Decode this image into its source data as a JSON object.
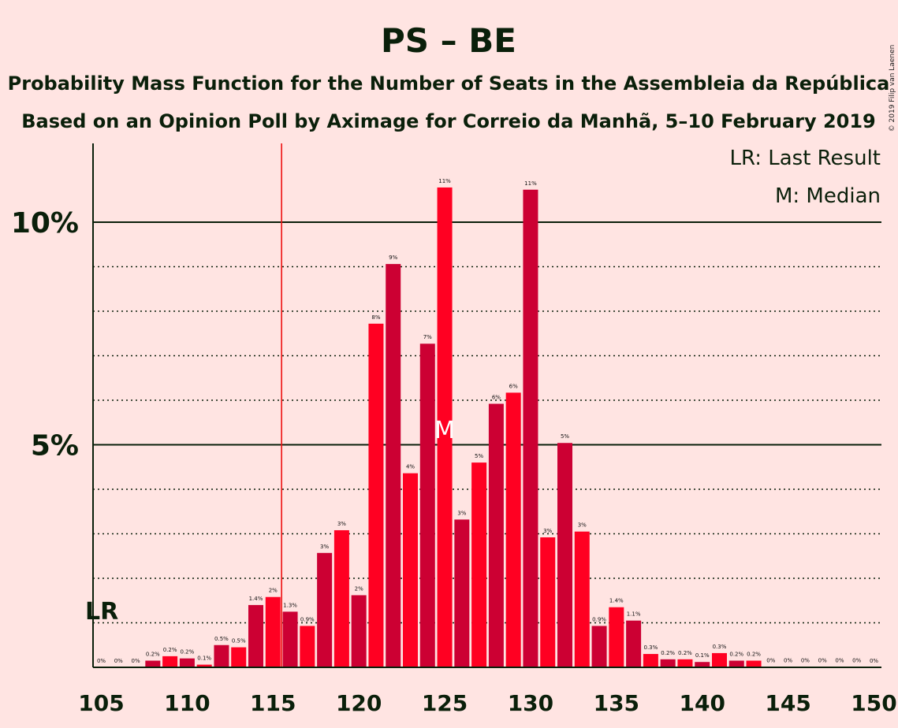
{
  "header": {
    "title": "PS – BE",
    "subtitle1": "Probability Mass Function for the Number of Seats in the Assembleia da República",
    "subtitle2": "Based on an Opinion Poll by Aximage for Correio da Manhã, 5–10 February 2019",
    "copyright": "© 2019 Filip van Laenen"
  },
  "legend": {
    "last_result": "LR: Last Result",
    "median": "M: Median"
  },
  "colors": {
    "background": "#FFE4E2",
    "bar_light": "#FF0022",
    "bar_dark": "#CC0033",
    "lr_line": "#EE1111",
    "axis": "#0a1f0a"
  },
  "chart_data": {
    "type": "bar",
    "xlim": [
      105,
      150
    ],
    "ylim": [
      0,
      11.8
    ],
    "x_ticks": [
      105,
      110,
      115,
      120,
      125,
      130,
      135,
      140,
      145,
      150
    ],
    "y_ticks": [
      {
        "value": 5,
        "label": "5%"
      },
      {
        "value": 10,
        "label": "10%"
      }
    ],
    "minor_gridlines": [
      1,
      2,
      3,
      4,
      6,
      7,
      8,
      9
    ],
    "last_result": {
      "seat": 116,
      "label": "LR"
    },
    "median": {
      "seat": 125,
      "label": "M"
    },
    "x": [
      105,
      106,
      107,
      108,
      109,
      110,
      111,
      112,
      113,
      114,
      115,
      116,
      117,
      118,
      119,
      120,
      121,
      122,
      123,
      124,
      125,
      126,
      127,
      128,
      129,
      130,
      131,
      132,
      133,
      134,
      135,
      136,
      137,
      138,
      139,
      140,
      141,
      142,
      143,
      144,
      145,
      146,
      147,
      148,
      149,
      150
    ],
    "values": [
      0,
      0,
      0,
      0.15,
      0.25,
      0.2,
      0.06,
      0.5,
      0.45,
      1.4,
      1.58,
      1.25,
      0.93,
      2.57,
      3.08,
      1.62,
      7.72,
      9.06,
      4.36,
      7.27,
      10.78,
      3.32,
      4.6,
      5.92,
      6.17,
      10.73,
      2.92,
      5.04,
      3.05,
      0.93,
      1.35,
      1.05,
      0.3,
      0.18,
      0.18,
      0.12,
      0.32,
      0.15,
      0.15,
      0.01,
      0.01,
      0.01,
      0.005,
      0.005,
      0.005,
      0.003
    ],
    "labels": [
      "0%",
      "0%",
      "0%",
      "0.2%",
      "0.2%",
      "0.2%",
      "0.1%",
      "0.5%",
      "0.5%",
      "1.4%",
      "2%",
      "1.3%",
      "0.9%",
      "3%",
      "3%",
      "2%",
      "8%",
      "9%",
      "4%",
      "7%",
      "11%",
      "3%",
      "5%",
      "6%",
      "6%",
      "11%",
      "3%",
      "5%",
      "3%",
      "0.9%",
      "1.4%",
      "1.1%",
      "0.3%",
      "0.2%",
      "0.2%",
      "0.1%",
      "0.3%",
      "0.2%",
      "0.2%",
      "0%",
      "0%",
      "0%",
      "0%",
      "0%",
      "0%",
      "0%"
    ]
  }
}
